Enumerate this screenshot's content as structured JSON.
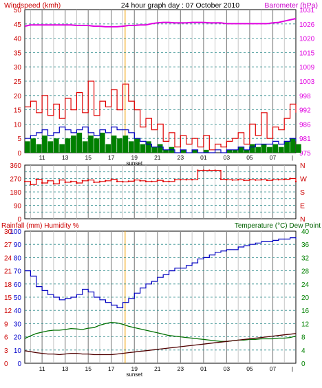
{
  "header": {
    "title": "24 hour graph day : 07 October 2010",
    "left_label": "Windspeed (kmh)",
    "right_label": "Barometer (hPa)"
  },
  "colors": {
    "wind": "#e00000",
    "gust_fill": "#008000",
    "avg_wind": "#0000c0",
    "baro": "#e000e0",
    "dir": "#e00000",
    "temp": "#007000",
    "dew": "#500000",
    "humidity": "#0000c0",
    "grid": "#a0a0a0",
    "axis_red": "#cc0000",
    "axis_blue": "#0000cc",
    "axis_green": "#008000"
  },
  "x_axis": {
    "ticks": [
      "11",
      "13",
      "15",
      "17",
      "19",
      "21",
      "23",
      "01",
      "03",
      "05",
      "07"
    ],
    "end_tick": "|",
    "sunset_label": "sunset"
  },
  "chart_data": [
    {
      "type": "line",
      "name": "wind-barometer",
      "ylabel": "Windspeed (kmh)",
      "ylim": [
        0,
        50
      ],
      "yticks": [
        0,
        5,
        10,
        15,
        20,
        25,
        30,
        35,
        40,
        45,
        50
      ],
      "y2label": "Barometer (hPa)",
      "y2lim": [
        975,
        1031
      ],
      "y2ticks": [
        975,
        981,
        986,
        992,
        998,
        1003,
        1009,
        1015,
        1020,
        1026,
        1031
      ],
      "x_hours": [
        9.5,
        10,
        10.5,
        11,
        11.5,
        12,
        12.5,
        13,
        13.5,
        14,
        14.5,
        15,
        15.5,
        16,
        16.5,
        17,
        17.5,
        18,
        18.5,
        19,
        19.5,
        20,
        20.5,
        21,
        21.5,
        22,
        22.5,
        23,
        23.5,
        24,
        24.5,
        25,
        25.5,
        26,
        26.5,
        27,
        27.5,
        28,
        28.5,
        29,
        29.5,
        30,
        30.5,
        31,
        31.5,
        32,
        32.5,
        33
      ],
      "series": [
        {
          "key": "wind",
          "values": [
            16,
            18,
            14,
            20,
            13,
            17,
            12,
            19,
            15,
            21,
            14,
            25,
            13,
            18,
            16,
            22,
            15,
            24,
            18,
            15,
            9,
            12,
            8,
            10,
            4,
            7,
            2,
            6,
            3,
            5,
            2,
            6,
            1,
            3,
            2,
            4,
            5,
            7,
            3,
            10,
            6,
            14,
            5,
            9,
            8,
            12,
            17,
            14
          ]
        },
        {
          "key": "gust",
          "values": [
            4,
            5,
            3,
            6,
            4,
            5,
            3,
            5,
            6,
            7,
            4,
            6,
            5,
            7,
            3,
            6,
            5,
            6,
            4,
            5,
            3,
            4,
            2,
            3,
            1,
            2,
            0,
            1,
            0,
            1,
            0,
            1,
            0,
            0,
            0,
            1,
            1,
            2,
            1,
            3,
            2,
            3,
            2,
            3,
            2,
            4,
            5,
            3
          ]
        },
        {
          "key": "avg",
          "values": [
            5,
            6,
            7,
            8,
            6,
            7,
            9,
            8,
            7,
            8,
            9,
            7,
            6,
            8,
            7,
            9,
            8,
            8,
            7,
            5,
            4,
            3,
            2,
            2,
            1,
            1,
            0,
            1,
            0,
            1,
            0,
            0,
            0,
            1,
            0,
            1,
            1,
            2,
            1,
            2,
            3,
            3,
            3,
            4,
            3,
            4,
            5,
            4
          ]
        },
        {
          "key": "baro",
          "values": [
            1024.5,
            1025.0,
            1025.0,
            1025.0,
            1025.0,
            1025.0,
            1025.0,
            1025.0,
            1025.0,
            1024.8,
            1024.8,
            1024.8,
            1024.5,
            1024.5,
            1024.3,
            1024.3,
            1024.3,
            1024.5,
            1024.8,
            1024.8,
            1025.0,
            1025.0,
            1025.5,
            1025.8,
            1026.0,
            1026.0,
            1025.8,
            1025.8,
            1025.8,
            1026.0,
            1026.0,
            1026.0,
            1025.8,
            1025.8,
            1025.8,
            1025.5,
            1025.5,
            1025.5,
            1025.5,
            1025.5,
            1025.5,
            1025.5,
            1025.5,
            1025.8,
            1026.0,
            1026.5,
            1027.0,
            1027.5
          ]
        }
      ]
    },
    {
      "type": "scatter",
      "name": "wind-direction",
      "ylim": [
        0,
        360
      ],
      "yticks": [
        0,
        90,
        180,
        270,
        360
      ],
      "y2ticks": [
        "N",
        "E",
        "S",
        "W",
        "N"
      ],
      "x_hours": [
        9.5,
        10,
        10.5,
        11,
        11.5,
        12,
        12.5,
        13,
        13.5,
        14,
        14.5,
        15,
        15.5,
        16,
        16.5,
        17,
        17.5,
        18,
        18.5,
        19,
        19.5,
        20,
        20.5,
        21,
        21.5,
        22,
        22.5,
        23,
        23.5,
        24,
        24.5,
        25,
        25.5,
        26,
        26.5,
        27,
        27.5,
        28,
        28.5,
        29,
        29.5,
        30,
        30.5,
        31,
        31.5,
        32,
        32.5,
        33
      ],
      "series": [
        {
          "key": "dir",
          "values": [
            250,
            230,
            265,
            240,
            255,
            235,
            260,
            245,
            250,
            240,
            255,
            260,
            245,
            250,
            255,
            265,
            250,
            248,
            252,
            260,
            255,
            250,
            250,
            258,
            250,
            250,
            262,
            262,
            262,
            262,
            325,
            325,
            325,
            325,
            265,
            262,
            260,
            262,
            258,
            262,
            260,
            262,
            258,
            262,
            262,
            265,
            270,
            250
          ]
        }
      ]
    },
    {
      "type": "line",
      "name": "rain-humidity-temperature",
      "ylabel": "Rainfall (mm)  Humidity %",
      "ylim": [
        0,
        100
      ],
      "yticks": [
        0,
        10,
        20,
        30,
        40,
        50,
        60,
        70,
        80,
        90,
        100
      ],
      "yticks_rain": [
        0,
        3,
        6,
        9,
        12,
        15,
        18,
        21,
        24,
        27,
        30
      ],
      "y2label": "Temperature (°C) Dew Point",
      "y2lim": [
        0,
        40
      ],
      "y2ticks": [
        0,
        4,
        8,
        12,
        16,
        20,
        24,
        28,
        32,
        36,
        40
      ],
      "x_hours": [
        9.5,
        10,
        10.5,
        11,
        11.5,
        12,
        12.5,
        13,
        13.5,
        14,
        14.5,
        15,
        15.5,
        16,
        16.5,
        17,
        17.5,
        18,
        18.5,
        19,
        19.5,
        20,
        20.5,
        21,
        21.5,
        22,
        22.5,
        23,
        23.5,
        24,
        24.5,
        25,
        25.5,
        26,
        26.5,
        27,
        27.5,
        28,
        28.5,
        29,
        29.5,
        30,
        30.5,
        31,
        31.5,
        32,
        32.5,
        33
      ],
      "series": [
        {
          "key": "humidity",
          "values": [
            70,
            66,
            58,
            55,
            52,
            50,
            48,
            49,
            50,
            52,
            56,
            54,
            50,
            48,
            46,
            44,
            42,
            46,
            49,
            53,
            57,
            60,
            62,
            65,
            67,
            70,
            72,
            72,
            74,
            76,
            79,
            80,
            82,
            84,
            85,
            86,
            86,
            88,
            89,
            90,
            91,
            92,
            92,
            93,
            94,
            94,
            95,
            94
          ]
        },
        {
          "key": "temp",
          "values": [
            7.5,
            8.3,
            9.0,
            9.4,
            9.8,
            10.0,
            10.0,
            10.2,
            10.5,
            10.4,
            10.2,
            10.6,
            10.8,
            11.5,
            12.0,
            12.4,
            12.2,
            11.8,
            11.2,
            10.8,
            10.4,
            10.0,
            9.6,
            9.2,
            8.8,
            8.4,
            8.2,
            8.0,
            7.8,
            7.6,
            7.4,
            7.2,
            7.0,
            6.8,
            6.6,
            6.6,
            6.8,
            7.0,
            7.0,
            7.2,
            7.2,
            7.4,
            7.4,
            7.4,
            7.6,
            7.6,
            7.8,
            8.2
          ]
        },
        {
          "key": "dew",
          "values": [
            3.8,
            3.5,
            3.2,
            3.0,
            2.8,
            2.8,
            2.6,
            2.8,
            3.0,
            3.0,
            2.8,
            2.8,
            2.6,
            2.6,
            2.6,
            2.6,
            2.8,
            3.0,
            3.2,
            3.4,
            3.6,
            3.8,
            4.0,
            4.2,
            4.4,
            4.6,
            4.8,
            5.0,
            5.2,
            5.4,
            5.6,
            5.8,
            6.0,
            6.2,
            6.4,
            6.6,
            6.8,
            7.0,
            7.2,
            7.4,
            7.6,
            7.8,
            8.0,
            8.2,
            8.4,
            8.6,
            8.8,
            9.0
          ]
        }
      ]
    }
  ]
}
